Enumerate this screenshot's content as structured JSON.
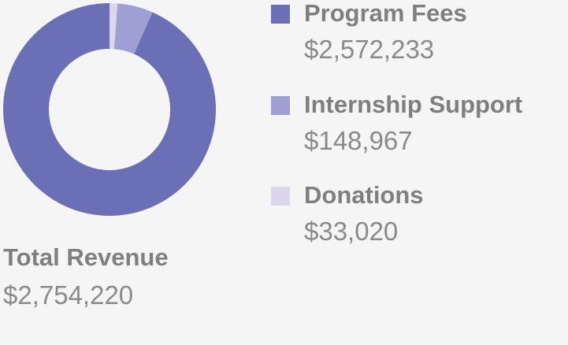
{
  "chart_data": {
    "type": "pie",
    "title": "",
    "slices": [
      {
        "name": "Program Fees",
        "display": "$2,572,233",
        "value": 2572233,
        "color": "#6b6fb5"
      },
      {
        "name": "Internship Support",
        "display": "$148,967",
        "value": 148967,
        "color": "#9e9fd2"
      },
      {
        "name": "Donations",
        "display": "$33,020",
        "value": 33020,
        "color": "#dcd6ec"
      }
    ],
    "total_label": "Total Revenue",
    "total_value": "$2,754,220",
    "legend_placement": "right"
  }
}
